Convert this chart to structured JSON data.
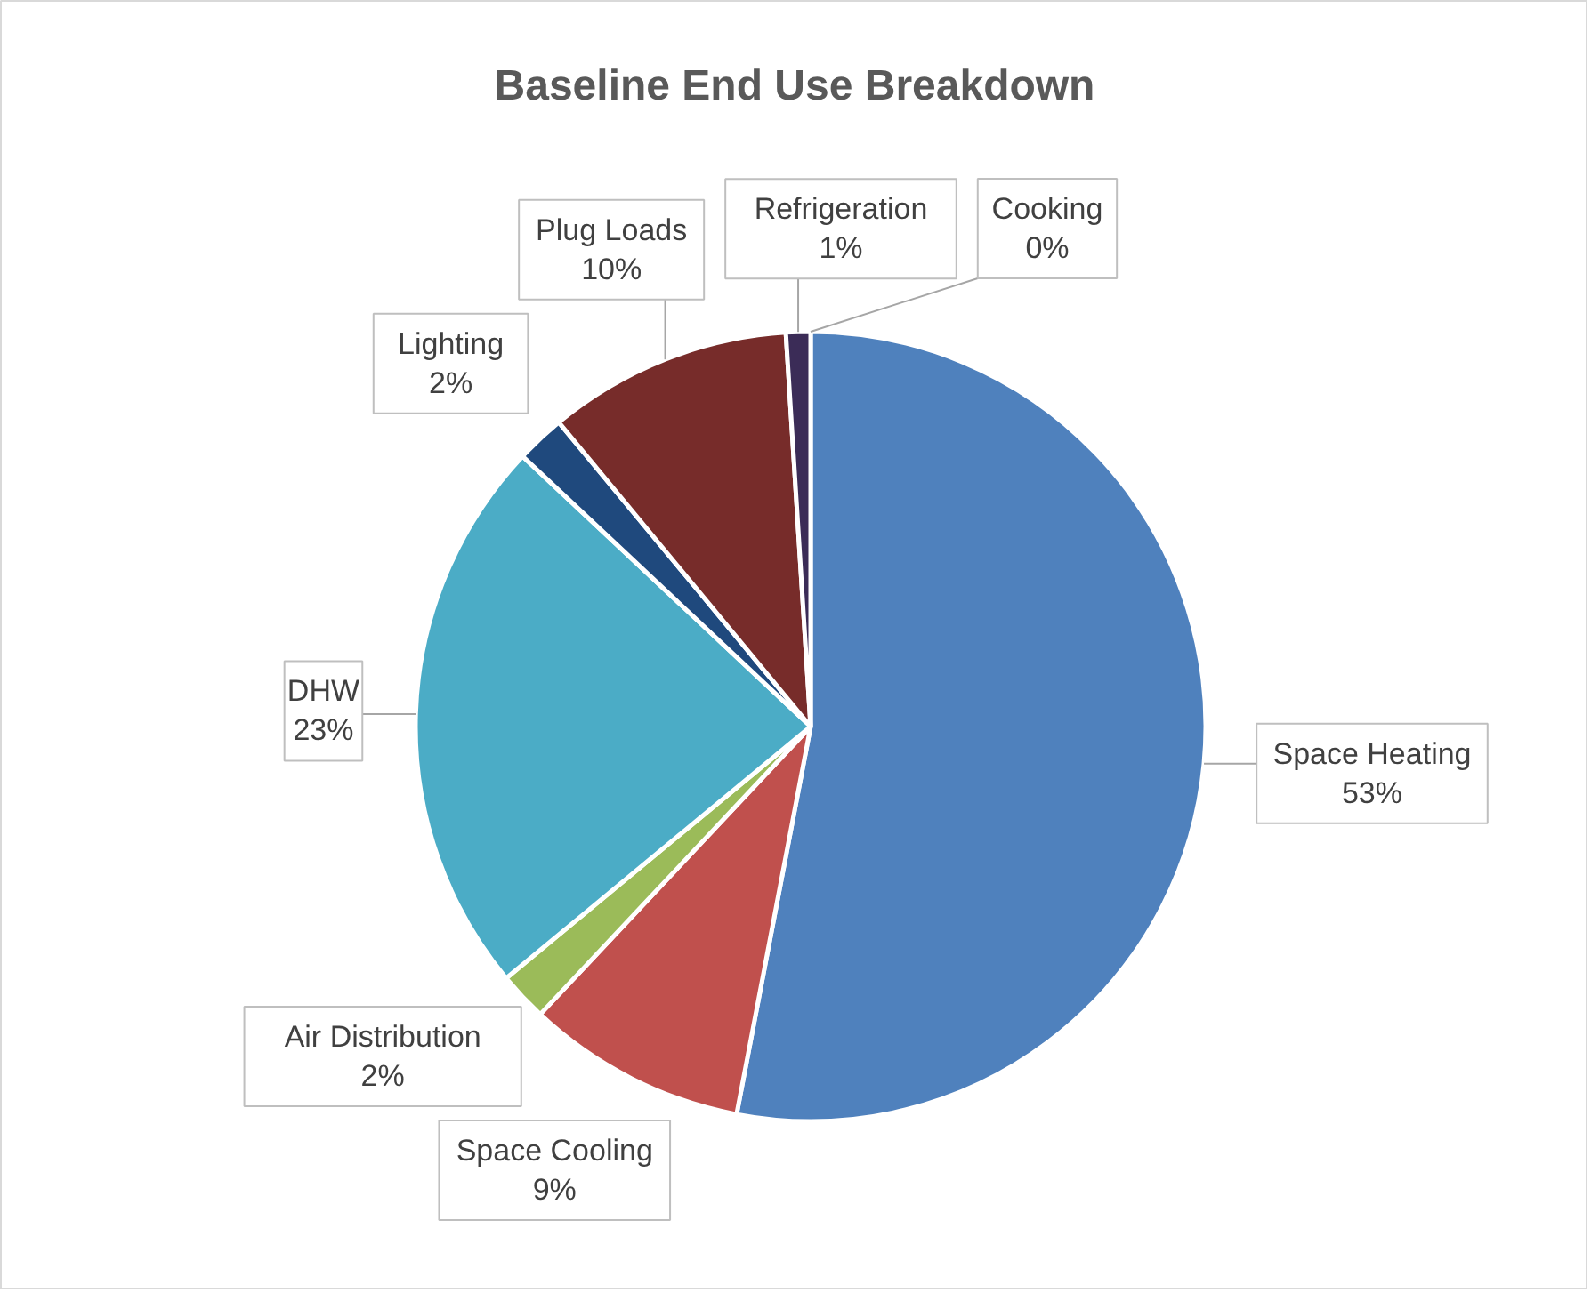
{
  "chart_data": {
    "type": "pie",
    "title": "Baseline End Use Breakdown",
    "categories": [
      "Space Heating",
      "Space Cooling",
      "Air Distribution",
      "DHW",
      "Lighting",
      "Plug Loads",
      "Refrigeration",
      "Cooking"
    ],
    "values": [
      53,
      9,
      2,
      23,
      2,
      10,
      1,
      0
    ],
    "value_labels": [
      "53%",
      "9%",
      "2%",
      "23%",
      "2%",
      "10%",
      "1%",
      "0%"
    ],
    "colors": [
      "#4f81bd",
      "#c0504d",
      "#9bbb59",
      "#4bacc6",
      "#1f497d",
      "#772c2a",
      "#3b2c57",
      "#2c7a8c"
    ]
  }
}
